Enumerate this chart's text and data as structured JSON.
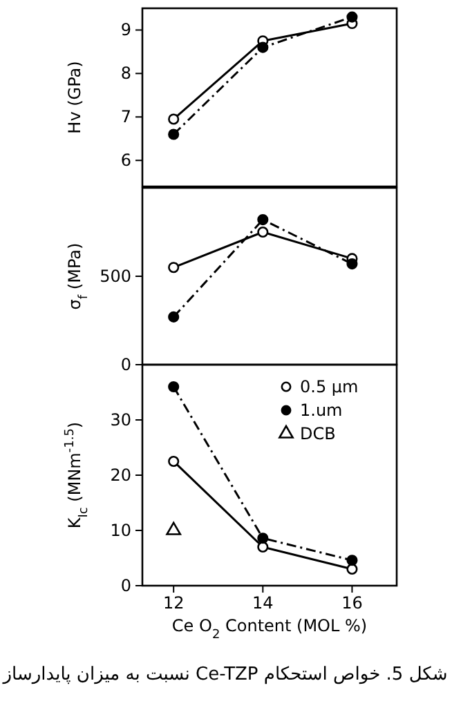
{
  "chart_data": [
    {
      "type": "line",
      "ylabel": "Hv (GPa)",
      "x": [
        12,
        14,
        16
      ],
      "xlim": [
        11.3,
        17
      ],
      "xticks": [
        12,
        14,
        16
      ],
      "ylim": [
        5.4,
        9.5
      ],
      "yticks": [
        6,
        7,
        8,
        9
      ],
      "tick_labels": "y",
      "marker": "circle",
      "grid": false,
      "legend": false,
      "series": [
        {
          "color": "#000000",
          "line_style": "solid",
          "values": [
            6.95,
            8.75,
            9.15
          ]
        },
        {
          "color": "#000000",
          "line_style": "dashed",
          "values": [
            6.6,
            8.6,
            9.3
          ]
        }
      ]
    },
    {
      "type": "line",
      "ylabel": "σ$_{f}$ (MPa)",
      "x": [
        12,
        14,
        16
      ],
      "xlim": [
        11.3,
        17
      ],
      "xticks": [
        12,
        14,
        16
      ],
      "ylim": [
        0,
        1000
      ],
      "yticks": [
        0,
        500
      ],
      "tick_labels": "y",
      "marker": "circle",
      "grid": false,
      "legend": false,
      "series": [
        {
          "color": "#000000",
          "line_style": "solid",
          "values": [
            550,
            750,
            600
          ]
        },
        {
          "color": "#000000",
          "line_style": "dashed",
          "values": [
            270,
            820,
            570
          ]
        }
      ]
    },
    {
      "type": "line",
      "ylabel": "K$_{Ic}$ (MNm$^{-1.5}$)",
      "xlabel": "Ce O$_{2}$ Content (MOL %)",
      "x": [
        12,
        14,
        16
      ],
      "xlim": [
        11.3,
        17
      ],
      "xticks": [
        12,
        14,
        16
      ],
      "ylim": [
        0,
        40
      ],
      "yticks": [
        0,
        10,
        20,
        30
      ],
      "marker": "circle",
      "grid": false,
      "legend": "top right",
      "annotations": [
        "شکل 5. خواص استحکام Ce-TZP نسبت به میزان پایدارساز"
      ],
      "series": [
        {
          "name": "0.5 μm",
          "color": "#000000",
          "line_style": "solid",
          "values": [
            22.5,
            7,
            3
          ]
        },
        {
          "name": "1.um",
          "color": "#000000",
          "line_style": "dashed",
          "values": [
            36,
            8.6,
            4.6
          ]
        },
        {
          "name": "DCB",
          "type": "scatter",
          "marker": "triangle",
          "color": "#000000",
          "x": [
            12
          ],
          "values": [
            10
          ]
        }
      ]
    }
  ]
}
